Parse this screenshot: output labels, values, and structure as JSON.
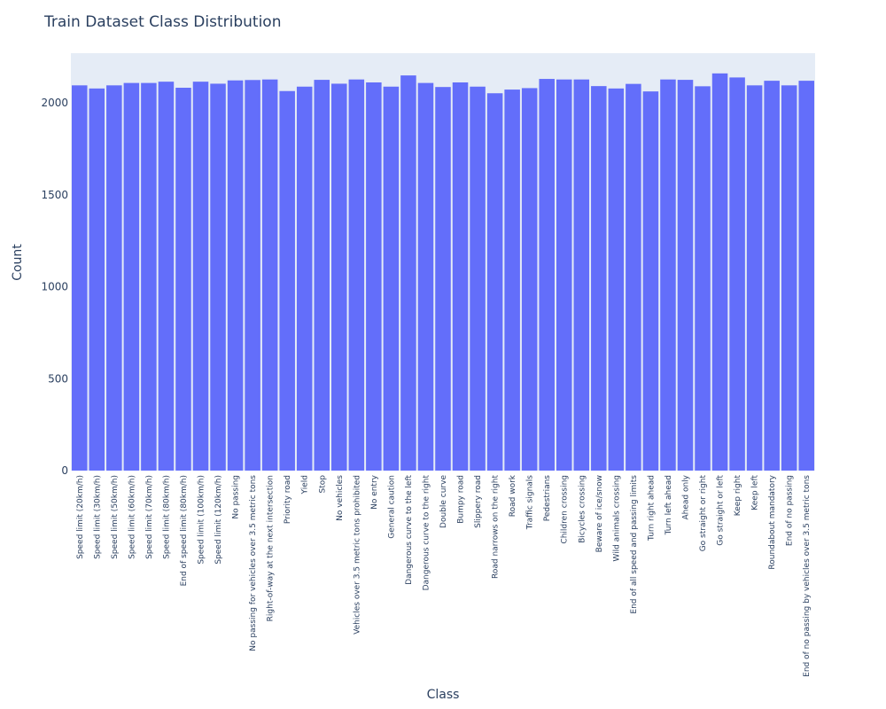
{
  "chart_data": {
    "type": "bar",
    "title": "Train Dataset Class Distribution",
    "xlabel": "Class",
    "ylabel": "Count",
    "ylim": [
      0,
      2270
    ],
    "yticks": [
      0,
      500,
      1000,
      1500,
      2000
    ],
    "grid": false,
    "bar_color": "#636efa",
    "plot_bg": "#e5ecf6",
    "categories": [
      "Speed limit (20km/h)",
      "Speed limit (30km/h)",
      "Speed limit (50km/h)",
      "Speed limit (60km/h)",
      "Speed limit (70km/h)",
      "Speed limit (80km/h)",
      "End of speed limit (80km/h)",
      "Speed limit (100km/h)",
      "Speed limit (120km/h)",
      "No passing",
      "No passing for vehicles over 3.5 metric tons",
      "Right-of-way at the next intersection",
      "Priority road",
      "Yield",
      "Stop",
      "No vehicles",
      "Vehicles over 3.5 metric tons prohibited",
      "No entry",
      "General caution",
      "Dangerous curve to the left",
      "Dangerous curve to the right",
      "Double curve",
      "Bumpy road",
      "Slippery road",
      "Road narrows on the right",
      "Road work",
      "Traffic signals",
      "Pedestrians",
      "Children crossing",
      "Bicycles crossing",
      "Beware of ice/snow",
      "Wild animals crossing",
      "End of all speed and passing limits",
      "Turn right ahead",
      "Turn left ahead",
      "Ahead only",
      "Go straight or right",
      "Go straight or left",
      "Keep right",
      "Keep left",
      "Roundabout mandatory",
      "End of no passing",
      "End of no passing by vehicles over 3.5 metric tons"
    ],
    "values": [
      2095,
      2078,
      2095,
      2108,
      2108,
      2115,
      2082,
      2115,
      2104,
      2122,
      2124,
      2127,
      2064,
      2088,
      2125,
      2104,
      2127,
      2111,
      2088,
      2149,
      2108,
      2086,
      2111,
      2088,
      2052,
      2072,
      2080,
      2130,
      2127,
      2127,
      2091,
      2078,
      2103,
      2062,
      2127,
      2125,
      2090,
      2160,
      2138,
      2095,
      2120,
      2095,
      2120
    ]
  }
}
